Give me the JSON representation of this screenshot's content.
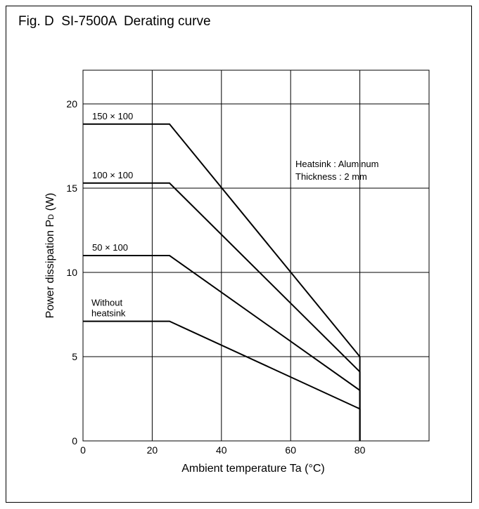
{
  "figure": {
    "title": "Fig. D  SI-7500A  Derating curve"
  },
  "chart_data": {
    "type": "line",
    "xlabel": "Ambient temperature Ta (°C)",
    "ylabel": "Power dissipation PD (W)",
    "xlim": [
      0,
      100
    ],
    "ylim": [
      0,
      22
    ],
    "xticks": [
      0,
      20,
      40,
      60,
      80
    ],
    "yticks": [
      0,
      5,
      10,
      15,
      20
    ],
    "grid": true,
    "series": [
      {
        "name": "150 × 100",
        "x": [
          0,
          25,
          80,
          80
        ],
        "y": [
          18.8,
          18.8,
          5.0,
          0
        ]
      },
      {
        "name": "100 × 100",
        "x": [
          0,
          25,
          80,
          80
        ],
        "y": [
          15.3,
          15.3,
          4.1,
          0
        ]
      },
      {
        "name": "50 × 100",
        "x": [
          0,
          25,
          80,
          80
        ],
        "y": [
          11.0,
          11.0,
          3.0,
          0
        ]
      },
      {
        "name": "Without heatsink",
        "x": [
          0,
          25,
          80,
          80
        ],
        "y": [
          7.1,
          7.1,
          1.9,
          0
        ]
      }
    ],
    "annotations": [
      "Heatsink : Aluminum",
      "Thickness : 2 mm"
    ]
  }
}
